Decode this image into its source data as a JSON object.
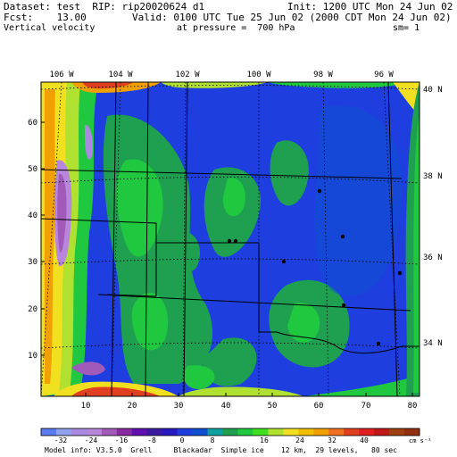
{
  "header": {
    "dataset_line": "Dataset: test  RIP: rip20020624 d1",
    "init_line": "Init: 1200 UTC Mon 24 Jun 02",
    "fcst_line": "Fcst:    13.00",
    "valid_line": "Valid: 0100 UTC Tue 25 Jun 02 (2000 CDT Mon 24 Jun 02)",
    "field_line": "Vertical velocity",
    "pressure_line": "at pressure =  700 hPa",
    "smooth_line": "sm= 1"
  },
  "map": {
    "top_longitude_labels": [
      "106 W",
      "104 W",
      "102 W",
      "100 W",
      "98 W",
      "96 W"
    ],
    "right_latitude_labels": [
      "40 N",
      "38 N",
      "36 N",
      "34 N"
    ],
    "left_grid_labels": [
      "60",
      "50",
      "40",
      "30",
      "20",
      "10"
    ],
    "bottom_grid_labels": [
      "10",
      "20",
      "30",
      "40",
      "50",
      "60",
      "70",
      "80"
    ]
  },
  "colorbar": {
    "colors": [
      "#5a7cf0",
      "#8fa0ec",
      "#a98ae0",
      "#b887dc",
      "#a25aba",
      "#8a2aa0",
      "#6010b0",
      "#3a1aa0",
      "#2818c0",
      "#1e3ee0",
      "#1050d0",
      "#10a0a0",
      "#1ea050",
      "#20c840",
      "#40e020",
      "#b0e030",
      "#f0e020",
      "#f0c000",
      "#f0a000",
      "#f07020",
      "#e04020",
      "#e02020",
      "#c01818",
      "#a04010",
      "#903010"
    ],
    "tick_labels": [
      "-32",
      "-24",
      "-16",
      "-8",
      "0",
      "8",
      "16",
      "24",
      "32",
      "40"
    ],
    "units": "cm s⁻¹"
  },
  "footer": {
    "model_info": "Model info: V3.5.0  Grell     Blackadar  Simple ice    12 km,  29 levels,   80 sec"
  }
}
